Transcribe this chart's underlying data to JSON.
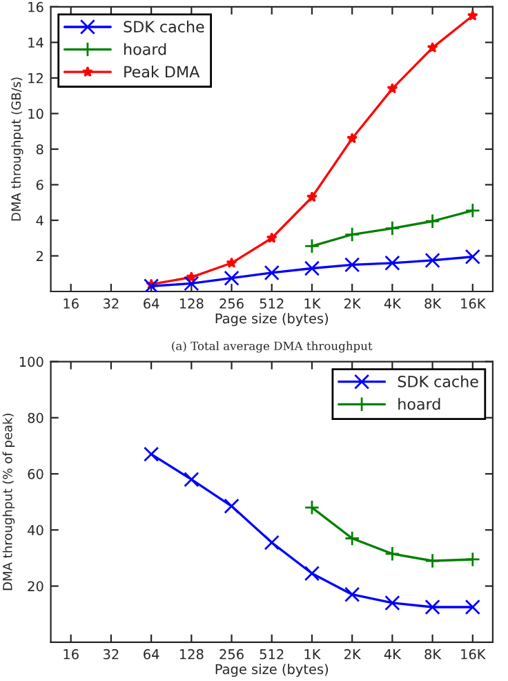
{
  "chart_data": [
    {
      "type": "line",
      "xlabel": "Page size (bytes)",
      "ylabel": "DMA throughput (GB/s)",
      "annotations": [
        "(a) Total average DMA throughput"
      ],
      "categories": [
        "16",
        "32",
        "64",
        "128",
        "256",
        "512",
        "1K",
        "2K",
        "4K",
        "8K",
        "16K"
      ],
      "series": [
        {
          "name": "SDK cache",
          "color": "#0000ff",
          "marker": "cross",
          "values": [
            null,
            null,
            0.3,
            0.45,
            0.75,
            1.05,
            1.3,
            1.5,
            1.6,
            1.75,
            1.95
          ]
        },
        {
          "name": "hoard",
          "color": "#008000",
          "marker": "plus",
          "values": [
            null,
            null,
            null,
            null,
            null,
            null,
            2.55,
            3.2,
            3.55,
            3.95,
            4.55
          ]
        },
        {
          "name": "Peak DMA",
          "color": "#ff0000",
          "marker": "star",
          "values": [
            null,
            null,
            0.4,
            0.8,
            1.6,
            3.0,
            5.3,
            8.6,
            11.4,
            13.7,
            15.5
          ]
        }
      ],
      "ylim": [
        0,
        16
      ],
      "yticks": [
        2,
        4,
        6,
        8,
        10,
        12,
        14,
        16
      ],
      "legend": "top left",
      "grid": false
    },
    {
      "type": "line",
      "xlabel": "Page size (bytes)",
      "ylabel": "DMA throughput (% of peak)",
      "categories": [
        "16",
        "32",
        "64",
        "128",
        "256",
        "512",
        "1K",
        "2K",
        "4K",
        "8K",
        "16K"
      ],
      "series": [
        {
          "name": "SDK cache",
          "color": "#0000ff",
          "marker": "cross",
          "values": [
            null,
            null,
            67,
            58,
            48.5,
            35.5,
            24.5,
            17,
            14,
            12.5,
            12.5
          ]
        },
        {
          "name": "hoard",
          "color": "#008000",
          "marker": "plus",
          "values": [
            null,
            null,
            null,
            null,
            null,
            null,
            48,
            37,
            31.5,
            29,
            29.5
          ]
        }
      ],
      "ylim": [
        0,
        100
      ],
      "yticks": [
        20,
        40,
        60,
        80,
        100
      ],
      "legend": "top right",
      "grid": false
    }
  ]
}
